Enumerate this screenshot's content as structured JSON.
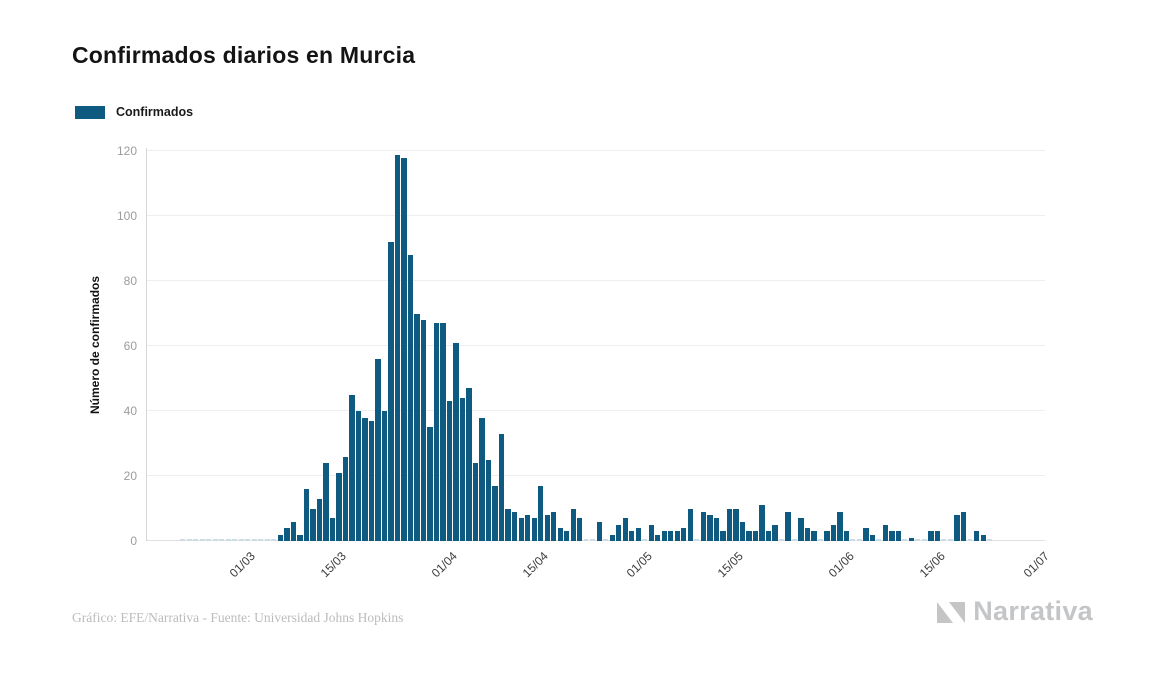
{
  "title": "Confirmados diarios en Murcia",
  "legend": {
    "label": "Confirmados"
  },
  "y_axis": {
    "title": "Número de confirmados"
  },
  "footer": {
    "caption": "Gráfico: EFE/Narrativa - Fuente: Universidad Johns Hopkins",
    "brand": "Narrativa"
  },
  "colors": {
    "bar": "#0f5a80",
    "zero_dash": "#ccdbe4",
    "grid": "#eeeeee",
    "axis_line": "#d6d6d6",
    "y_tick_text": "#9c9c9c",
    "x_tick_text": "#3a3a3a",
    "title_text": "#141414",
    "caption_text": "#bcbcbc",
    "brand_gray": "#c3c5c7"
  },
  "chart_data": {
    "type": "bar",
    "title": "Confirmados diarios en Murcia",
    "series_name": "Confirmados",
    "xlabel": "",
    "ylabel": "Número de confirmados",
    "ylim": [
      0,
      121
    ],
    "y_ticks": [
      0,
      20,
      40,
      60,
      80,
      100,
      120
    ],
    "grid": true,
    "legend_position": "top-left",
    "x_tick_labels": [
      "01/03",
      "15/03",
      "01/04",
      "15/04",
      "01/05",
      "15/05",
      "01/06",
      "15/06",
      "01/07"
    ],
    "x_tick_day_index": [
      15,
      29,
      46,
      60,
      76,
      90,
      107,
      121,
      137
    ],
    "n_days": 138,
    "values": [
      null,
      null,
      null,
      null,
      null,
      0,
      0,
      0,
      0,
      0,
      0,
      0,
      0,
      0,
      0,
      0,
      0,
      0,
      0,
      0,
      2,
      4,
      6,
      2,
      16,
      10,
      13,
      24,
      7,
      21,
      26,
      45,
      40,
      38,
      37,
      56,
      40,
      92,
      119,
      118,
      88,
      70,
      68,
      35,
      67,
      67,
      43,
      61,
      44,
      47,
      24,
      38,
      25,
      17,
      33,
      10,
      9,
      7,
      8,
      7,
      17,
      8,
      9,
      4,
      3,
      10,
      7,
      0,
      0,
      6,
      0,
      2,
      5,
      7,
      3,
      4,
      0,
      5,
      2,
      3,
      3,
      3,
      4,
      10,
      0,
      9,
      8,
      7,
      3,
      10,
      10,
      6,
      3,
      3,
      11,
      3,
      5,
      0,
      9,
      0,
      7,
      4,
      3,
      0,
      3,
      5,
      9,
      3,
      0,
      0,
      4,
      2,
      0,
      5,
      3,
      3,
      0,
      1,
      0,
      0,
      3,
      3,
      0,
      0,
      8,
      9,
      0,
      3,
      2,
      0,
      null,
      null,
      null,
      null,
      null,
      null,
      null,
      null
    ]
  }
}
